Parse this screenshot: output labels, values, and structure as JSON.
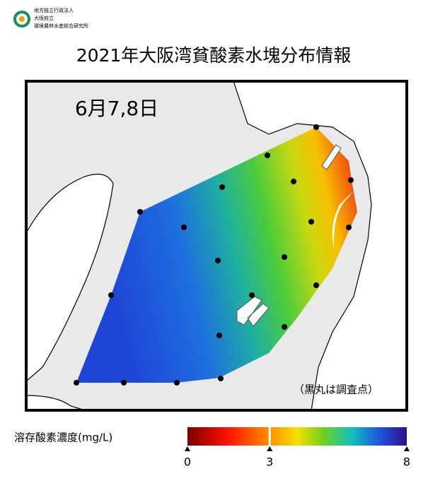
{
  "header": {
    "org": [
      "地方独立行政法人",
      "大阪府立",
      "環境農林水産総合研究所"
    ],
    "title": "2021年大阪湾貧酸素水塊分布情報"
  },
  "map": {
    "date": "6月7,8日",
    "note": "（黒丸は調査点）"
  },
  "colorbar": {
    "label": "溶存酸素濃度(mg/L)",
    "range": [
      0,
      8
    ],
    "ticks": [
      0,
      3,
      8
    ]
  }
}
